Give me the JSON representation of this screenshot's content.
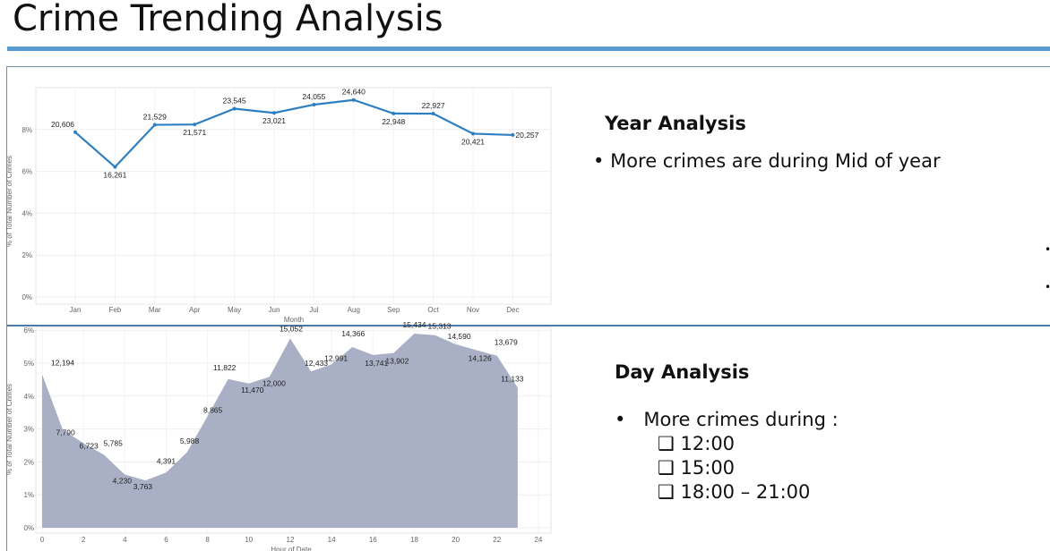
{
  "title": "Crime Trending Analysis",
  "year_panel": {
    "heading": "Year Analysis",
    "bullets": [
      "More crimes are during Mid of year"
    ]
  },
  "day_panel": {
    "heading": "Day Analysis",
    "bullet": "More crimes during :",
    "sub_items": [
      "12:00",
      "15:00",
      "18:00 – 21:00"
    ],
    "sub_icon": "checkbox-square-icon"
  },
  "colors": {
    "line": "#2e7fc1",
    "area": "#a9afc4",
    "accent_bar": "#5b9bd5"
  },
  "chart_data": [
    {
      "type": "line",
      "xlabel": "Month",
      "ylabel": "% of Total Number of Crimes",
      "categories": [
        "Jan",
        "Feb",
        "Mar",
        "Apr",
        "May",
        "Jun",
        "Jul",
        "Aug",
        "Sep",
        "Oct",
        "Nov",
        "Dec"
      ],
      "values": [
        20606,
        16261,
        21529,
        21571,
        23545,
        23021,
        24055,
        24640,
        22948,
        22927,
        20421,
        20257
      ],
      "value_labels": [
        "20,606",
        "16,261",
        "21,529",
        "21,571",
        "23,545",
        "23,021",
        "24,055",
        "24,640",
        "22,948",
        "22,927",
        "20,421",
        "20,257"
      ],
      "y_axis": "percent of total",
      "yticks": [
        "0%",
        "2%",
        "4%",
        "6%",
        "8%"
      ],
      "ylim": [
        0,
        10
      ],
      "grid": true
    },
    {
      "type": "area",
      "xlabel": "Hour of Date",
      "ylabel": "% of Total Number of Crimes",
      "x": [
        0,
        1,
        2,
        3,
        4,
        5,
        6,
        7,
        8,
        9,
        10,
        11,
        12,
        13,
        14,
        15,
        16,
        17,
        18,
        19,
        20,
        21,
        22,
        23
      ],
      "values": [
        12194,
        7790,
        6723,
        5785,
        4230,
        3763,
        4391,
        5988,
        8865,
        11822,
        11470,
        12000,
        15052,
        12433,
        12991,
        14366,
        13741,
        13902,
        15434,
        15313,
        14590,
        14126,
        13679,
        11133
      ],
      "value_labels": [
        "12,194",
        "7,790",
        "6,723",
        "5,785",
        "4,230",
        "3,763",
        "4,391",
        "5,988",
        "8,865",
        "11,822",
        "11,470",
        "12,000",
        "15,052",
        "12,433",
        "12,991",
        "14,366",
        "13,741",
        "13,902",
        "15,434",
        "15,313",
        "14,590",
        "14,126",
        "13,679",
        "11,133"
      ],
      "y_axis": "percent of total",
      "xticks": [
        "0",
        "2",
        "4",
        "6",
        "8",
        "10",
        "12",
        "14",
        "16",
        "18",
        "20",
        "22",
        "24"
      ],
      "yticks": [
        "0%",
        "1%",
        "2%",
        "3%",
        "4%",
        "5%",
        "6%"
      ],
      "ylim": [
        0,
        6
      ],
      "xlim": [
        0,
        24
      ],
      "grid": true
    }
  ]
}
